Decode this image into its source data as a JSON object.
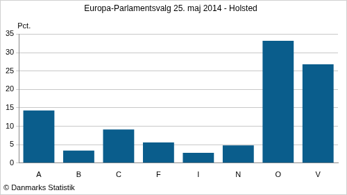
{
  "chart_data": {
    "type": "bar",
    "title": "Europa-Parlamentsvalg 25. maj 2014 - Holsted",
    "y_label": "Pct.",
    "annotations": [
      "© Danmarks Statistik"
    ],
    "categories": [
      "A",
      "B",
      "C",
      "F",
      "I",
      "N",
      "O",
      "V"
    ],
    "values": [
      14.3,
      3.4,
      9.1,
      5.6,
      2.8,
      4.8,
      33.2,
      26.8
    ],
    "color": "#0a5d8c",
    "ylim": [
      0,
      35
    ],
    "yticks": [
      0,
      5,
      10,
      15,
      20,
      25,
      30,
      35
    ],
    "grid": true
  }
}
